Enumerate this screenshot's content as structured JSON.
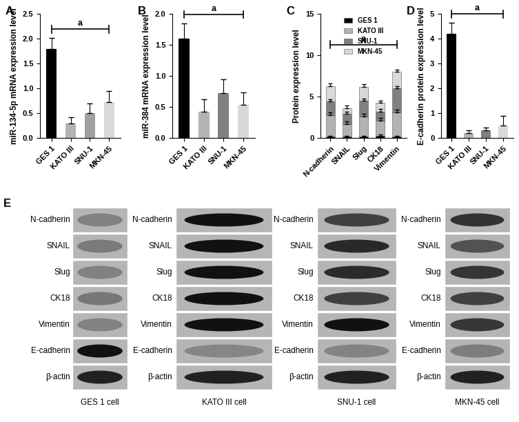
{
  "chart_data": [
    {
      "type": "bar",
      "label": "A",
      "y_label": "miR-134-5p mRNA expression level",
      "categories": [
        "GES 1",
        "KATO III",
        "SNU-1",
        "MKN-45"
      ],
      "values": [
        1.8,
        0.3,
        0.5,
        0.72
      ],
      "errors": [
        0.22,
        0.12,
        0.2,
        0.22
      ],
      "colors": [
        "#000000",
        "#b3b3b3",
        "#a0a0a0",
        "#d9d9d9"
      ],
      "ylim": [
        0,
        2.5
      ],
      "yticks": [
        {
          "value": 0,
          "label": "0.0"
        },
        0.5,
        {
          "value": 1,
          "label": "1.0"
        },
        1.5,
        {
          "value": 2,
          "label": "2.0"
        },
        2.5
      ],
      "annotations": [
        {
          "text": "a",
          "from": "GES 1",
          "to": "MKN-45"
        }
      ]
    },
    {
      "type": "bar",
      "label": "B",
      "y_label": "miR-384 mRNA expression level",
      "categories": [
        "GES 1",
        "KATO III",
        "SNU-1",
        "MKN-45"
      ],
      "values": [
        1.6,
        0.42,
        0.72,
        0.54
      ],
      "errors": [
        0.25,
        0.2,
        0.23,
        0.2
      ],
      "colors": [
        "#000000",
        "#b3b3b3",
        "#808080",
        "#d9d9d9"
      ],
      "ylim": [
        0,
        2
      ],
      "yticks": [
        {
          "value": 0,
          "label": "0.0"
        },
        0.5,
        {
          "value": 1,
          "label": "1.0"
        },
        1.5,
        {
          "value": 2,
          "label": "2.0"
        }
      ],
      "annotations": [
        {
          "text": "a",
          "from": "GES 1",
          "to": "MKN-45"
        }
      ]
    },
    {
      "type": "bar",
      "label": "C",
      "stacked": true,
      "legend": "upper center",
      "y_label": "Protein expression level",
      "categories": [
        "N-cadherin",
        "SNAIL",
        "Slug",
        "CK18",
        "Vimentin"
      ],
      "series": [
        {
          "name": "GES 1",
          "color": "#000000",
          "values": [
            0.2,
            0.2,
            0.2,
            0.3,
            0.2
          ],
          "errors": [
            0.1,
            0.1,
            0.1,
            0.1,
            0.1
          ]
        },
        {
          "name": "KATO III",
          "color": "#b3b3b3",
          "values": [
            2.6,
            1.5,
            2.4,
            1.8,
            2.9
          ],
          "errors": [
            0.3,
            0.3,
            0.3,
            0.3,
            0.3
          ]
        },
        {
          "name": "SNU-1",
          "color": "#808080",
          "values": [
            1.6,
            1.2,
            1.9,
            1.1,
            2.9
          ],
          "errors": [
            0.3,
            0.3,
            0.3,
            0.3,
            0.3
          ]
        },
        {
          "name": "MKN-45",
          "color": "#d9d9d9",
          "values": [
            1.9,
            0.7,
            1.7,
            1.1,
            2.0
          ],
          "errors": [
            0.3,
            0.3,
            0.3,
            0.2,
            0.3
          ]
        }
      ],
      "ylim": [
        0,
        15
      ],
      "yticks": [
        0,
        5,
        10,
        15
      ],
      "annotations": [
        {
          "text": "a",
          "from": "N-cadherin",
          "to": "Vimentin"
        }
      ]
    },
    {
      "type": "bar",
      "label": "D",
      "y_label": "E-cadherin protein expression level",
      "categories": [
        "GES 1",
        "KATO III",
        "SNU-1",
        "MKN-45"
      ],
      "values": [
        4.2,
        0.2,
        0.3,
        0.5
      ],
      "errors": [
        0.45,
        0.1,
        0.12,
        0.4
      ],
      "colors": [
        "#000000",
        "#b3b3b3",
        "#808080",
        "#d9d9d9"
      ],
      "ylim": [
        0,
        5
      ],
      "yticks": [
        0,
        1,
        2,
        3,
        4,
        5
      ],
      "annotations": [
        {
          "text": "a",
          "from": "GES 1",
          "to": "MKN-45"
        }
      ]
    }
  ],
  "blots": {
    "label": "E",
    "bands": [
      "N-cadherin",
      "SNAIL",
      "Slug",
      "CK18",
      "Vimentin",
      "E-cadherin",
      "β-actin"
    ],
    "cells": [
      "GES 1 cell",
      "KATO III cell",
      "SNU-1 cell",
      "MKN-45 cell"
    ]
  }
}
